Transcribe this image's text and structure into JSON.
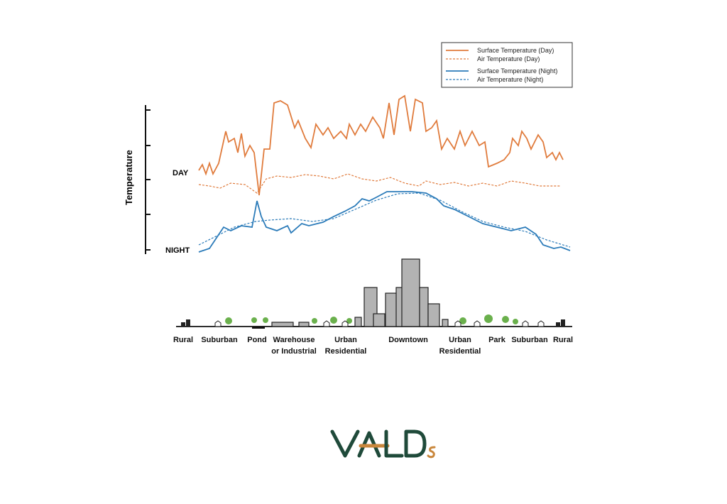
{
  "legend": [
    "Surface Temperature (Day)",
    "Air Temperature  (Day)",
    "Surface Temperature (Night)",
    "Air Temperature (Night)"
  ],
  "axis_label": "Temperature",
  "day_label": "DAY",
  "night_label": "NIGHT",
  "zones": [
    {
      "lines": [
        "Rural"
      ]
    },
    {
      "lines": [
        "Suburban"
      ]
    },
    {
      "lines": [
        "Pond"
      ]
    },
    {
      "lines": [
        "Warehouse",
        "or Industrial"
      ]
    },
    {
      "lines": [
        "Urban",
        "Residential"
      ]
    },
    {
      "lines": [
        "Downtown"
      ]
    },
    {
      "lines": [
        "Urban",
        "Residential"
      ]
    },
    {
      "lines": [
        "Park"
      ]
    },
    {
      "lines": [
        "Suburban"
      ]
    },
    {
      "lines": [
        "Rural"
      ]
    }
  ]
}
